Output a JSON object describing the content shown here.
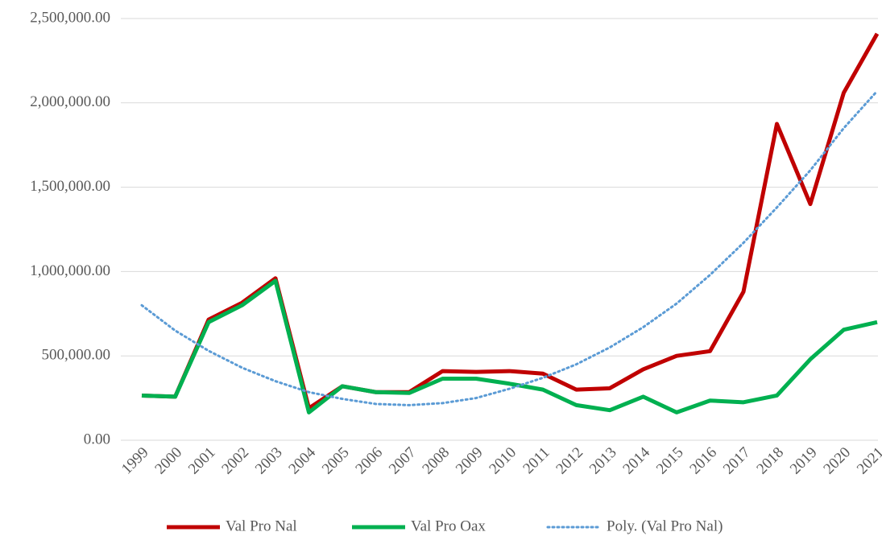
{
  "chart_data": {
    "type": "line",
    "categories": [
      "1999",
      "2000",
      "2001",
      "2002",
      "2003",
      "2004",
      "2005",
      "2006",
      "2007",
      "2008",
      "2009",
      "2010",
      "2011",
      "2012",
      "2013",
      "2014",
      "2015",
      "2016",
      "2017",
      "2018",
      "2019",
      "2020",
      "2021"
    ],
    "series": [
      {
        "name": "Val Pro Nal",
        "color": "#c00000",
        "dashed": false,
        "values": [
          265000,
          258000,
          715000,
          815000,
          960000,
          190000,
          320000,
          285000,
          285000,
          410000,
          405000,
          410000,
          395000,
          300000,
          308000,
          420000,
          500000,
          528000,
          880000,
          1875000,
          1400000,
          2060000,
          2410000
        ]
      },
      {
        "name": "Val Pro Oax",
        "color": "#00b050",
        "dashed": false,
        "values": [
          265000,
          258000,
          700000,
          800000,
          945000,
          165000,
          320000,
          285000,
          280000,
          365000,
          365000,
          335000,
          300000,
          208000,
          178000,
          258000,
          165000,
          235000,
          225000,
          265000,
          480000,
          655000,
          700000
        ]
      },
      {
        "name": "Poly. (Val Pro Nal)",
        "color": "#5b9bd5",
        "dashed": true,
        "values": [
          800000,
          650000,
          530000,
          430000,
          350000,
          285000,
          245000,
          215000,
          208000,
          220000,
          250000,
          305000,
          370000,
          450000,
          550000,
          670000,
          810000,
          980000,
          1170000,
          1380000,
          1600000,
          1850000,
          2070000
        ]
      }
    ],
    "ylim": [
      0,
      2500000
    ],
    "yticks": [
      {
        "value": 0,
        "label": "0.00"
      },
      {
        "value": 500000,
        "label": "500,000.00"
      },
      {
        "value": 1000000,
        "label": "1,000,000.00"
      },
      {
        "value": 1500000,
        "label": "1,500,000.00"
      },
      {
        "value": 2000000,
        "label": "2,000,000.00"
      },
      {
        "value": 2500000,
        "label": "2,500,000.00"
      }
    ],
    "grid": true,
    "legend": "bottom"
  }
}
